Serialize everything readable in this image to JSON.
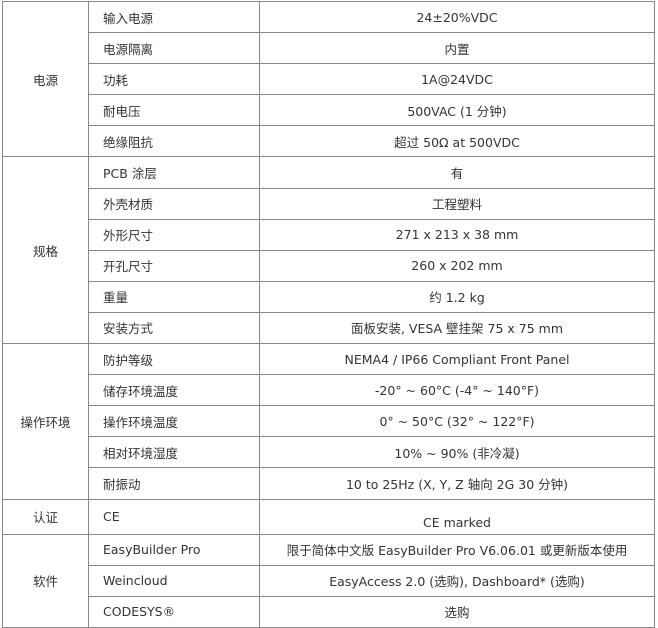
{
  "groups": [
    {
      "category": "电源",
      "rows": [
        {
          "label": "输入电源",
          "value": "24±20%VDC"
        },
        {
          "label": "电源隔离",
          "value": "内置"
        },
        {
          "label": "功耗",
          "value": "1A@24VDC"
        },
        {
          "label": "耐电压",
          "value": "500VAC (1 分钟)"
        },
        {
          "label": "绝缘阻抗",
          "value": "超过 50Ω at 500VDC"
        }
      ]
    },
    {
      "category": "规格",
      "rows": [
        {
          "label": "PCB 涂层",
          "value": "有"
        },
        {
          "label": "外壳材质",
          "value": "工程塑料"
        },
        {
          "label": "外形尺寸",
          "value": "271 x 213 x 38 mm"
        },
        {
          "label": "开孔尺寸",
          "value": "260 x 202 mm"
        },
        {
          "label": "重量",
          "value": "约 1.2 kg"
        },
        {
          "label": "安装方式",
          "value": "面板安装, VESA 壁挂架 75 x 75 mm"
        }
      ]
    },
    {
      "category": "操作环境",
      "rows": [
        {
          "label": "防护等级",
          "value": "NEMA4 / IP66 Compliant Front Panel"
        },
        {
          "label": "储存环境温度",
          "value": "-20° ~ 60°C (-4° ~ 140°F)"
        },
        {
          "label": "操作环境温度",
          "value": "0° ~ 50°C (32° ~ 122°F)"
        },
        {
          "label": "相对环境湿度",
          "value": "10% ~ 90% (非冷凝)"
        },
        {
          "label": "耐振动",
          "value": "10 to 25Hz (X, Y, Z 轴向 2G 30 分钟)"
        }
      ]
    },
    {
      "category": "认证",
      "rows": [
        {
          "label": "CE",
          "value": "CE marked"
        }
      ]
    },
    {
      "category": "软件",
      "rows": [
        {
          "label": "EasyBuilder Pro",
          "value": "限于简体中文版 EasyBuilder Pro V6.06.01 或更新版本使用"
        },
        {
          "label": "Weincloud",
          "value": "EasyAccess 2.0 (选购), Dashboard* (选购)"
        },
        {
          "label": "CODESYS®",
          "value": "选购"
        }
      ]
    }
  ]
}
